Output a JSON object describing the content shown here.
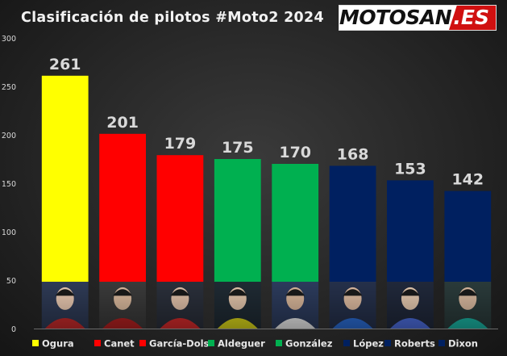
{
  "header": {
    "title": "Clasificación de pilotos #Moto2 2024",
    "logo_text": "MOTOSAN",
    "logo_suffix": ".ES"
  },
  "chart_data": {
    "type": "bar",
    "title": "Clasificación de pilotos #Moto2 2024",
    "xlabel": "",
    "ylabel": "",
    "ylim": [
      0,
      300
    ],
    "yticks": [
      "0",
      "50",
      "100",
      "150",
      "200",
      "250",
      "300"
    ],
    "grid": false,
    "legend": "bottom",
    "categories": [
      "Ogura",
      "Canet",
      "García-Dols",
      "Aldeguer",
      "González",
      "López",
      "Roberts",
      "Dixon"
    ],
    "values": [
      261,
      201,
      179,
      175,
      170,
      168,
      153,
      142
    ],
    "colors": [
      "#ffff00",
      "#ff0000",
      "#ff0000",
      "#00b050",
      "#00b050",
      "#002060",
      "#002060",
      "#002060"
    ],
    "rider_photo_palettes": [
      [
        "#2e3a55",
        "#c22a2a",
        "#e8c8b0"
      ],
      [
        "#3a3a3a",
        "#b02020",
        "#d9b89c"
      ],
      [
        "#2a2f3a",
        "#d02a2a",
        "#e0c0a8"
      ],
      [
        "#1f2a33",
        "#d6d21a",
        "#e2c4aa"
      ],
      [
        "#2c3b5c",
        "#e8e8e8",
        "#d8b69a"
      ],
      [
        "#25304a",
        "#2a6ad0",
        "#dcbaa0"
      ],
      [
        "#20283a",
        "#4a6ad8",
        "#e4c8ae"
      ],
      [
        "#2a3a3a",
        "#1ab0a0",
        "#d8b89e"
      ]
    ]
  }
}
